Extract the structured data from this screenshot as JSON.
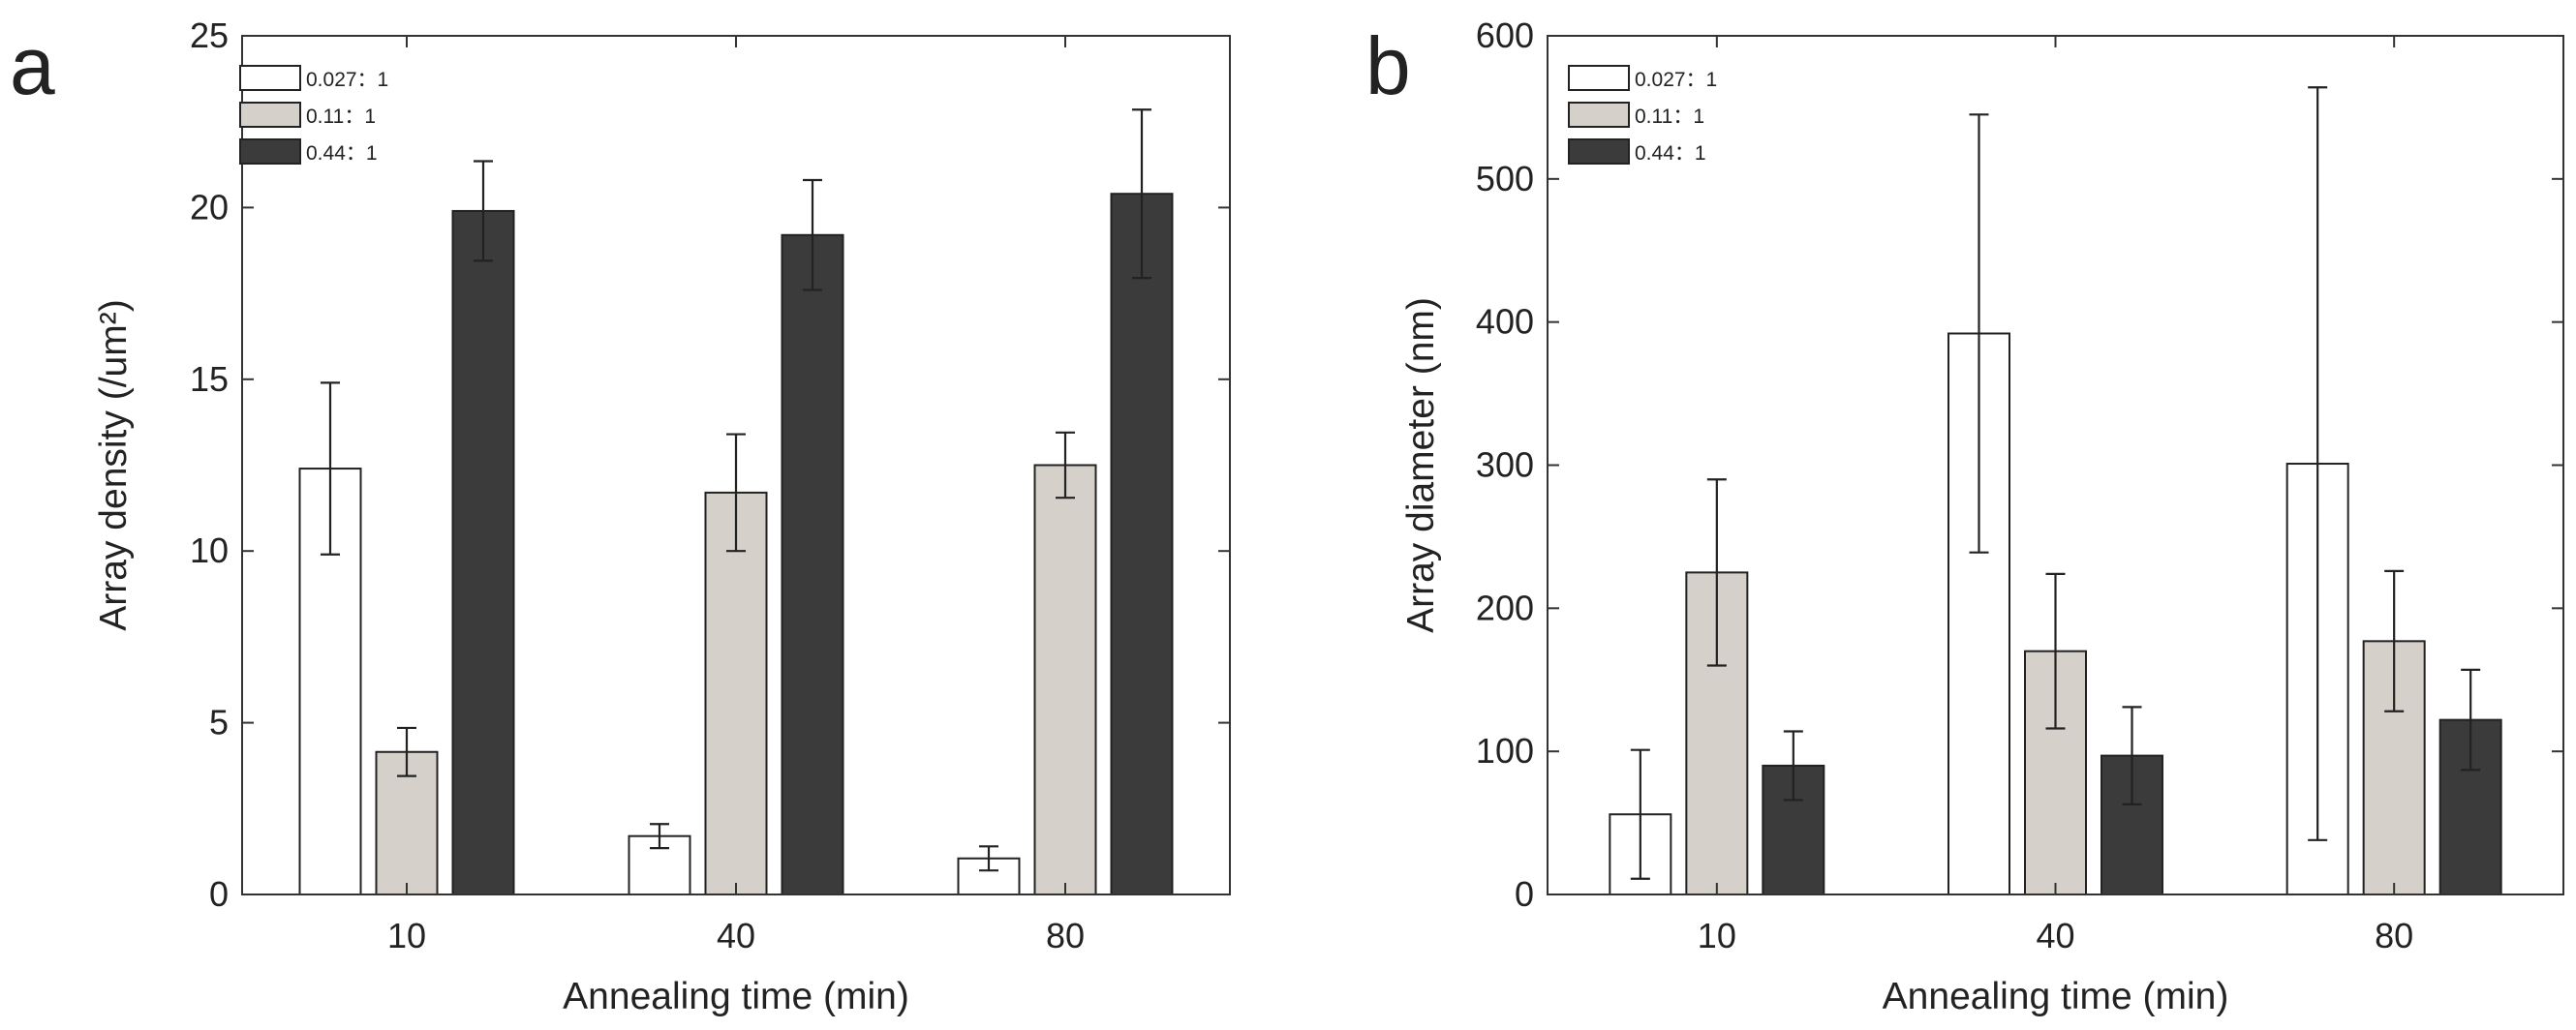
{
  "colors": {
    "series": [
      "#ffffff",
      "#d5d0c9",
      "#3b3b3b"
    ],
    "edge": "#222222",
    "axis": "#333333"
  },
  "chart_data": [
    {
      "panel_label": "a",
      "type": "bar",
      "xlabel": "Annealing time (min)",
      "ylabel": "Array density (/um²)",
      "categories": [
        "10",
        "40",
        "80"
      ],
      "ylim": [
        0,
        25
      ],
      "yticks": [
        0,
        5,
        10,
        15,
        20,
        25
      ],
      "ytick_labels": [
        "0",
        "5",
        "10",
        "15",
        "20",
        "25"
      ],
      "legend_position": "top-left",
      "series": [
        {
          "name": "0.027：1",
          "values": [
            12.4,
            1.7,
            1.05
          ],
          "errors": [
            2.5,
            0.35,
            0.35
          ]
        },
        {
          "name": "0.11：1",
          "values": [
            4.15,
            11.7,
            12.5
          ],
          "errors": [
            0.7,
            1.7,
            0.95
          ]
        },
        {
          "name": "0.44：1",
          "values": [
            19.9,
            19.2,
            20.4
          ],
          "errors": [
            1.45,
            1.6,
            2.45
          ]
        }
      ]
    },
    {
      "panel_label": "b",
      "type": "bar",
      "xlabel": "Annealing time (min)",
      "ylabel": "Array diameter (nm)",
      "categories": [
        "10",
        "40",
        "80"
      ],
      "ylim": [
        0,
        600
      ],
      "yticks": [
        0,
        100,
        200,
        300,
        400,
        500,
        600
      ],
      "ytick_labels": [
        "0",
        "100",
        "200",
        "300",
        "400",
        "500",
        "600"
      ],
      "legend_position": "top-left",
      "series": [
        {
          "name": "0.027：1",
          "values": [
            56,
            392,
            301
          ],
          "errors": [
            45,
            153,
            263
          ]
        },
        {
          "name": "0.11：1",
          "values": [
            225,
            170,
            177
          ],
          "errors": [
            65,
            54,
            49
          ]
        },
        {
          "name": "0.44：1",
          "values": [
            90,
            97,
            122
          ],
          "errors": [
            24,
            34,
            35
          ]
        }
      ]
    }
  ]
}
